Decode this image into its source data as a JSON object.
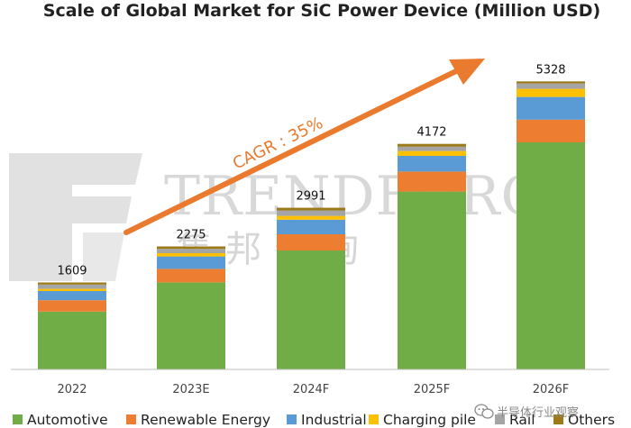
{
  "watermark": {
    "brand": "TRENDFORCE",
    "brand_cn": "集邦咨询",
    "source_badge": "半导体行业观察"
  },
  "colors": {
    "Automotive": "#70AD47",
    "Renewable Energy": "#ED7D31",
    "Industrial": "#5B9BD5",
    "Charging pile": "#FFC000",
    "Rail": "#A5A5A5",
    "Others": "#9C7A1A",
    "arrow": "#E97A2E",
    "axis": "#BFBFBF",
    "watermark": "#DADADA"
  },
  "chart_data": {
    "type": "bar",
    "stacked": true,
    "title": "Scale of Global Market for SiC Power Device (Million USD)",
    "categories": [
      "2022",
      "2023E",
      "2024F",
      "2025F",
      "2026F"
    ],
    "totals": [
      1609,
      2275,
      2991,
      4172,
      5328
    ],
    "series": [
      {
        "name": "Automotive",
        "values": [
          1070,
          1610,
          2200,
          3290,
          4200
        ]
      },
      {
        "name": "Renewable Energy",
        "values": [
          210,
          250,
          300,
          370,
          420
        ]
      },
      {
        "name": "Industrial",
        "values": [
          170,
          230,
          270,
          290,
          420
        ]
      },
      {
        "name": "Charging pile",
        "values": [
          40,
          60,
          70,
          90,
          150
        ]
      },
      {
        "name": "Rail",
        "values": [
          80,
          80,
          100,
          80,
          100
        ]
      },
      {
        "name": "Others",
        "values": [
          39,
          45,
          51,
          52,
          38
        ]
      }
    ],
    "ylim": [
      0,
      5700
    ],
    "grid": false,
    "legend": "bottom",
    "annotation": "CAGR : 35%"
  }
}
